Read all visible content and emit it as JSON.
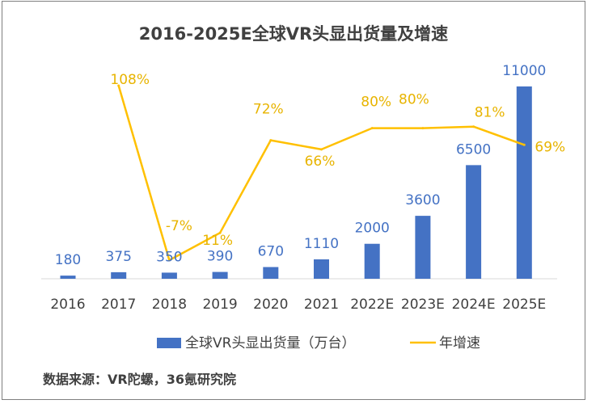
{
  "chart_data": {
    "type": "bar",
    "title": "2016-2025E全球VR头显出货量及增速",
    "categories": [
      "2016",
      "2017",
      "2018",
      "2019",
      "2020",
      "2021",
      "2022E",
      "2023E",
      "2024E",
      "2025E"
    ],
    "series": [
      {
        "name": "全球VR头显出货量（万台）",
        "type": "bar",
        "axis": "left",
        "values": [
          180,
          375,
          350,
          390,
          670,
          1110,
          2000,
          3600,
          6500,
          11000
        ],
        "labels": [
          "180",
          "375",
          "350",
          "390",
          "670",
          "1110",
          "2000",
          "3600",
          "6500",
          "11000"
        ],
        "color": "#4472C4"
      },
      {
        "name": "年增速",
        "type": "line",
        "axis": "right",
        "values": [
          null,
          108,
          -7,
          11,
          72,
          66,
          80,
          80,
          81,
          69
        ],
        "labels": [
          null,
          "108%",
          "-7%",
          "11%",
          "72%",
          "66%",
          "80%",
          "80%",
          "81%",
          "69%"
        ],
        "color": "#FFC000"
      }
    ],
    "ylim_left": [
      0,
      11000
    ],
    "ylim_right": [
      -10,
      110
    ],
    "grid": false,
    "legend": "bottom"
  },
  "source_text": "数据来源：VR陀螺，36氪研究院"
}
